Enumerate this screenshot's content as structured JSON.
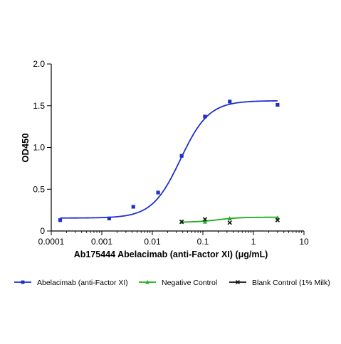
{
  "chart_data": {
    "type": "scatter",
    "title": "",
    "xlabel": "Ab175444 Abelacimab (anti-Factor XI) (μg/mL)",
    "ylabel": "OD450",
    "xscale": "log",
    "xlim": [
      0.0001,
      10
    ],
    "ylim": [
      0,
      2.0
    ],
    "x_ticks": [
      {
        "value": 0.0001,
        "label": "0.0001"
      },
      {
        "value": 0.001,
        "label": "0.001"
      },
      {
        "value": 0.01,
        "label": "0.01"
      },
      {
        "value": 0.1,
        "label": "0.1"
      },
      {
        "value": 1,
        "label": "1"
      },
      {
        "value": 10,
        "label": "10"
      }
    ],
    "y_ticks": [
      {
        "value": 0,
        "label": "0"
      },
      {
        "value": 0.5,
        "label": "0.5"
      },
      {
        "value": 1.0,
        "label": "1.0"
      },
      {
        "value": 1.5,
        "label": "1.5"
      },
      {
        "value": 2.0,
        "label": "2.0"
      }
    ],
    "grid": false,
    "legend_position": "bottom",
    "series": [
      {
        "name": "Abelacimab (anti-Factor XI)",
        "color": "#1f2fcc",
        "marker": "square",
        "points": [
          {
            "x": 0.00015,
            "y": 0.13
          },
          {
            "x": 0.0014,
            "y": 0.15
          },
          {
            "x": 0.0042,
            "y": 0.29
          },
          {
            "x": 0.013,
            "y": 0.46
          },
          {
            "x": 0.038,
            "y": 0.9
          },
          {
            "x": 0.11,
            "y": 1.37
          },
          {
            "x": 0.34,
            "y": 1.55
          },
          {
            "x": 3.0,
            "y": 1.51
          }
        ],
        "fit": {
          "bottom": 0.155,
          "top": 1.56,
          "ec50": 0.036,
          "hill": 1.55,
          "x_from": 0.00015,
          "x_to": 3.0
        }
      },
      {
        "name": "Negative Control",
        "color": "#1faa1f",
        "marker": "triangle",
        "points": [
          {
            "x": 0.038,
            "y": 0.11
          },
          {
            "x": 0.11,
            "y": 0.11
          },
          {
            "x": 0.34,
            "y": 0.15
          },
          {
            "x": 3.0,
            "y": 0.16
          }
        ],
        "fit": {
          "bottom": 0.105,
          "top": 0.165,
          "ec50": 0.2,
          "hill": 2.0,
          "x_from": 0.038,
          "x_to": 3.0
        }
      },
      {
        "name": "Blank Control (1% Milk)",
        "color": "#111111",
        "marker": "x",
        "points": [
          {
            "x": 0.038,
            "y": 0.11
          },
          {
            "x": 0.11,
            "y": 0.14
          },
          {
            "x": 0.34,
            "y": 0.1
          },
          {
            "x": 3.0,
            "y": 0.13
          }
        ]
      }
    ]
  }
}
